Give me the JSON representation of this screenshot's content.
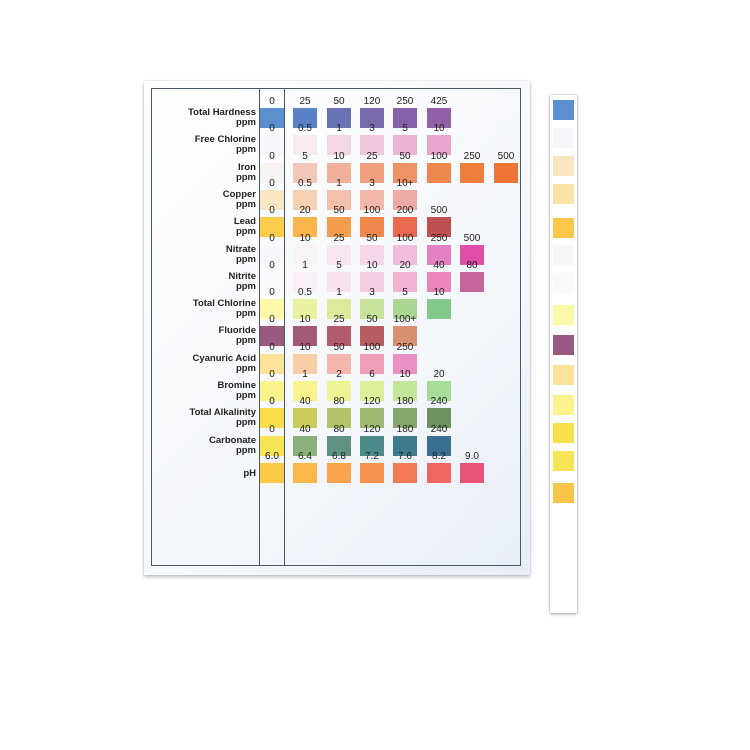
{
  "chart": {
    "rows": [
      {
        "name": "Total Hardness",
        "unit": "ppm",
        "values": [
          "0",
          "25",
          "50",
          "120",
          "250",
          "425"
        ],
        "colors": [
          "#5b8fd0",
          "#5a80c8",
          "#6a72b6",
          "#7a6aac",
          "#8461a8",
          "#9160a6"
        ]
      },
      {
        "name": "Free Chlorine",
        "unit": "ppm",
        "values": [
          "0",
          "0.5",
          "1",
          "3",
          "5",
          "10"
        ],
        "colors": [
          "#f7f6fa",
          "#f7eaf0",
          "#f3d7e5",
          "#efc6db",
          "#eab4d2",
          "#e7a6cb"
        ]
      },
      {
        "name": "Iron",
        "unit": "ppm",
        "values": [
          "0",
          "5",
          "10",
          "25",
          "50",
          "100",
          "250",
          "500"
        ],
        "colors": [
          "#f6f3f1",
          "#f4c8b8",
          "#f2b09a",
          "#f0a07f",
          "#ef9265",
          "#ee874e",
          "#ef7d3c",
          "#ec7537"
        ]
      },
      {
        "name": "Copper",
        "unit": "ppm",
        "values": [
          "0",
          "0.5",
          "1",
          "3",
          "10+"
        ],
        "colors": [
          "#fbe6c4",
          "#f8d1b2",
          "#f5c0ab",
          "#f2b7a9",
          "#efaaa6"
        ]
      },
      {
        "name": "Lead",
        "unit": "ppm",
        "values": [
          "0",
          "20",
          "50",
          "100",
          "200",
          "500"
        ],
        "colors": [
          "#fccd4a",
          "#f9b54b",
          "#f49d4c",
          "#f0874c",
          "#ea6a4f",
          "#c04f52"
        ]
      },
      {
        "name": "Nitrate",
        "unit": "ppm",
        "values": [
          "0",
          "10",
          "25",
          "50",
          "100",
          "250",
          "500"
        ],
        "colors": [
          "#f8f7fa",
          "#f8f4f8",
          "#f6e7f0",
          "#f4d6e8",
          "#f1bddc",
          "#e481c3",
          "#df4ea9"
        ]
      },
      {
        "name": "Nitrite",
        "unit": "ppm",
        "values": [
          "0",
          "1",
          "5",
          "10",
          "20",
          "40",
          "80"
        ],
        "colors": [
          "#fbf9fb",
          "#faeff6",
          "#f8e2ee",
          "#f5cde3",
          "#f2b2d4",
          "#ec85ba",
          "#c7669b"
        ]
      },
      {
        "name": "Total Chlorine",
        "unit": "ppm",
        "values": [
          "0",
          "0.5",
          "1",
          "3",
          "5",
          "10"
        ],
        "colors": [
          "#fbf9a7",
          "#ecf1a2",
          "#dcea9e",
          "#c7e29a",
          "#abd793",
          "#84c98a"
        ]
      },
      {
        "name": "Fluoride",
        "unit": "ppm",
        "values": [
          "0",
          "10",
          "25",
          "50",
          "100+"
        ],
        "colors": [
          "#9a5a80",
          "#a45a76",
          "#b25b6a",
          "#b75d62",
          "#d99070"
        ]
      },
      {
        "name": "Cyanuric Acid",
        "unit": "ppm",
        "values": [
          "0",
          "10",
          "50",
          "100",
          "250"
        ],
        "colors": [
          "#fbe39a",
          "#f8cea6",
          "#f4b6ad",
          "#ef9fb7",
          "#ea90c2"
        ]
      },
      {
        "name": "Bromine",
        "unit": "ppm",
        "values": [
          "0",
          "1",
          "2",
          "6",
          "10",
          "20"
        ],
        "colors": [
          "#fbf48e",
          "#f9f48e",
          "#eef495",
          "#dcee98",
          "#c4e69a",
          "#a7dd98"
        ]
      },
      {
        "name": "Total Alkalinity",
        "unit": "ppm",
        "values": [
          "0",
          "40",
          "80",
          "120",
          "180",
          "240"
        ],
        "colors": [
          "#f8de48",
          "#c9cb5c",
          "#b3c36a",
          "#9db870",
          "#86a56c",
          "#6e9160"
        ]
      },
      {
        "name": "Carbonate",
        "unit": "ppm",
        "values": [
          "0",
          "40",
          "80",
          "120",
          "180",
          "240"
        ],
        "colors": [
          "#f9e456",
          "#8cb07c",
          "#5f9283",
          "#4c8a8a",
          "#3f7b8c",
          "#3a6e90"
        ]
      },
      {
        "name": "pH",
        "unit": "",
        "values": [
          "6.0",
          "6.4",
          "6.8",
          "7.2",
          "7.6",
          "8.2",
          "9.0"
        ],
        "colors": [
          "#fbc943",
          "#fbb748",
          "#f9a44b",
          "#f6924e",
          "#f27a57",
          "#ef6662",
          "#e8537a"
        ]
      }
    ]
  },
  "strip": {
    "pads": [
      "#5b8fd0",
      "#f7f6fa",
      "#fbe6c4",
      "#fce4a8",
      "#fbc84a",
      "#f8f7fa",
      "#fbf9fb",
      "#fbf9a7",
      "#9a5a80",
      "#fbe39a",
      "#fbf48e",
      "#f8de48",
      "#f9e456",
      "#f7c54a"
    ]
  }
}
